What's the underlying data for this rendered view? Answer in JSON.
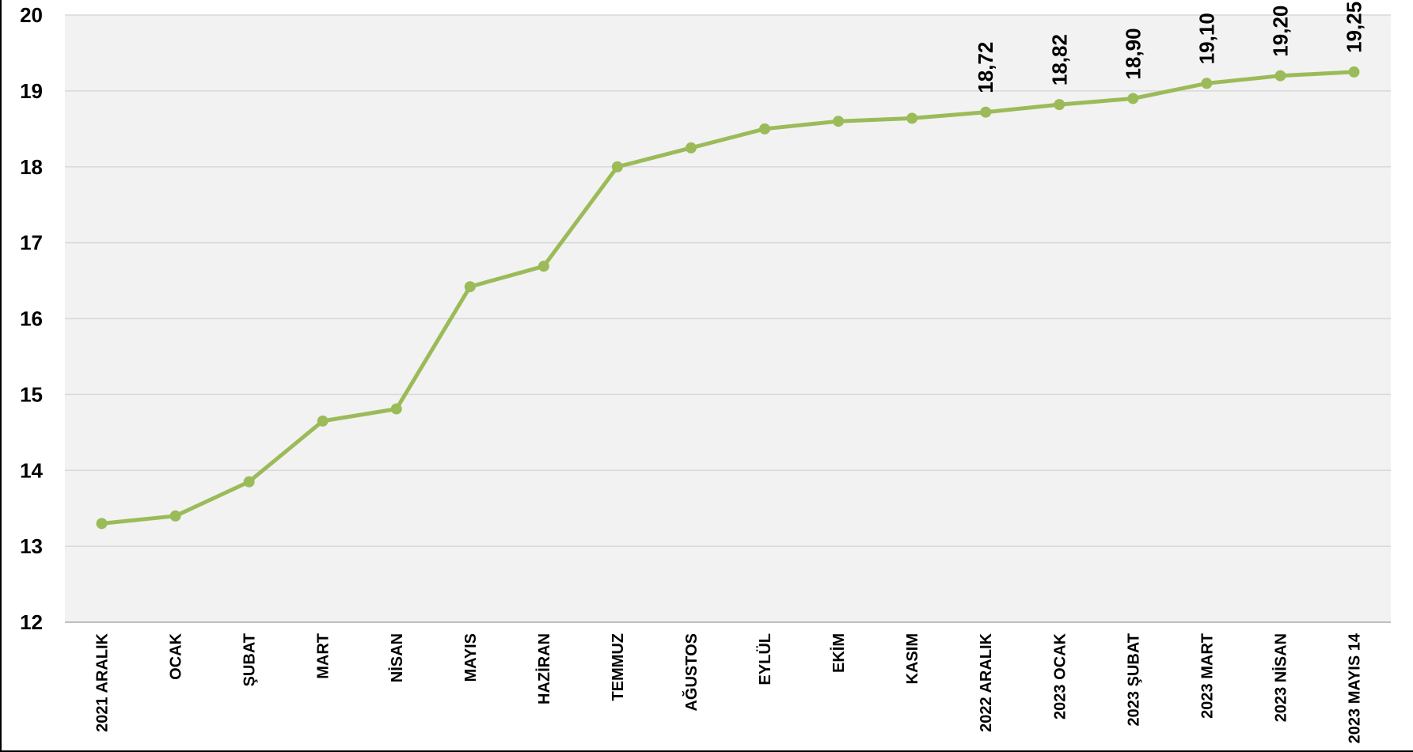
{
  "chart_data": {
    "type": "line",
    "title": "",
    "xlabel": "",
    "ylabel": "",
    "categories": [
      "2021 ARALIK",
      "OCAK",
      "ŞUBAT",
      "MART",
      "NİSAN",
      "MAYIS",
      "HAZİRAN",
      "TEMMUZ",
      "AĞUSTOS",
      "EYLÜL",
      "EKİM",
      "KASIM",
      "2022 ARALIK",
      "2023 OCAK",
      "2023 ŞUBAT",
      "2023 MART",
      "2023 NİSAN",
      "2023 MAYIS 14"
    ],
    "series": [
      {
        "values": [
          13.3,
          13.4,
          13.85,
          14.65,
          14.81,
          16.42,
          16.69,
          18.0,
          18.25,
          18.5,
          18.6,
          18.64,
          18.72,
          18.82,
          18.9,
          19.1,
          19.2,
          19.25
        ],
        "data_labels": [
          "",
          "",
          "",
          "",
          "",
          "",
          "",
          "",
          "",
          "",
          "",
          "",
          "18,72",
          "18,82",
          "18,90",
          "19,10",
          "19,20",
          "19,25"
        ]
      }
    ],
    "ylim": [
      12,
      20
    ],
    "yticks": [
      "12",
      "13",
      "14",
      "15",
      "16",
      "17",
      "18",
      "19",
      "20"
    ],
    "grid": true,
    "legend": "none",
    "colors": {
      "line": "#9bbb59",
      "plot_background": "#f2f2f2",
      "gridline": "#d9d9d9",
      "axis": "#bfbfbf"
    }
  }
}
